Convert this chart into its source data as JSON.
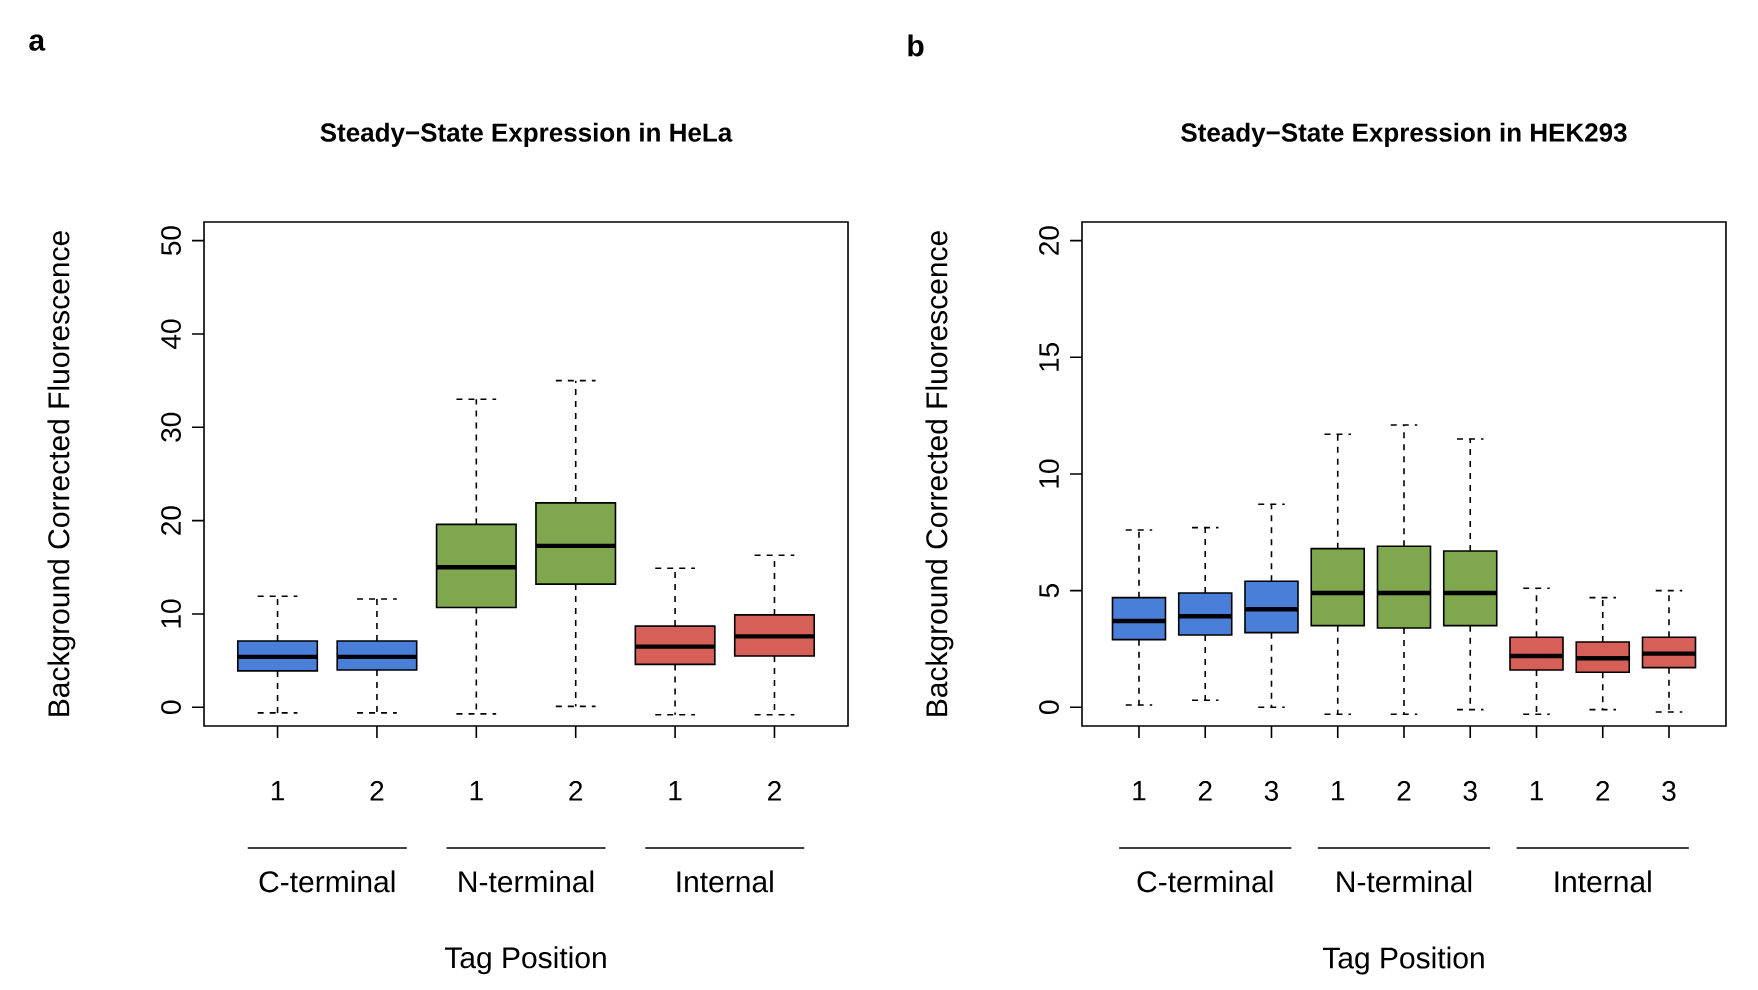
{
  "chart_data": [
    {
      "type": "box",
      "title": "Steady−State Expression in HeLa",
      "xlabel": "Tag Position",
      "ylabel": "Background Corrected Fluorescence",
      "annotations": [
        "a",
        "C-terminal",
        "N-terminal",
        "Internal"
      ],
      "categories": [
        "1",
        "2",
        "1",
        "2",
        "1",
        "2"
      ],
      "ylim": [
        -2,
        52
      ],
      "yticks": [
        0,
        10,
        20,
        30,
        40,
        50
      ],
      "series": [
        {
          "color": "#4a7fd9",
          "boxes": [
            {
              "low": -0.6,
              "q1": 3.9,
              "median": 5.4,
              "q3": 7.1,
              "high": 11.9
            },
            {
              "low": -0.6,
              "q1": 4.0,
              "median": 5.4,
              "q3": 7.1,
              "high": 11.6
            },
            null,
            null,
            null,
            null
          ]
        },
        {
          "color": "#7fa84e",
          "boxes": [
            null,
            null,
            {
              "low": -0.7,
              "q1": 10.7,
              "median": 15.0,
              "q3": 19.6,
              "high": 33.0
            },
            {
              "low": 0.1,
              "q1": 13.2,
              "median": 17.3,
              "q3": 21.9,
              "high": 35.0
            },
            null,
            null
          ]
        },
        {
          "color": "#d65f58",
          "boxes": [
            null,
            null,
            null,
            null,
            {
              "low": -0.8,
              "q1": 4.6,
              "median": 6.5,
              "q3": 8.7,
              "high": 14.9
            },
            {
              "low": -0.8,
              "q1": 5.5,
              "median": 7.6,
              "q3": 9.9,
              "high": 16.3
            }
          ]
        }
      ]
    },
    {
      "type": "box",
      "title": "Steady−State Expression in HEK293",
      "xlabel": "Tag Position",
      "ylabel": "Background Corrected Fluorescence",
      "annotations": [
        "b",
        "C-terminal",
        "N-terminal",
        "Internal"
      ],
      "categories": [
        "1",
        "2",
        "3",
        "1",
        "2",
        "3",
        "1",
        "2",
        "3"
      ],
      "ylim": [
        -0.8,
        20.8
      ],
      "yticks": [
        0,
        5,
        10,
        15,
        20
      ],
      "series": [
        {
          "color": "#4a7fd9",
          "boxes": [
            {
              "low": 0.1,
              "q1": 2.9,
              "median": 3.7,
              "q3": 4.7,
              "high": 7.6
            },
            {
              "low": 0.3,
              "q1": 3.1,
              "median": 3.9,
              "q3": 4.9,
              "high": 7.7
            },
            {
              "low": 0.0,
              "q1": 3.2,
              "median": 4.2,
              "q3": 5.4,
              "high": 8.7
            },
            null,
            null,
            null,
            null,
            null,
            null
          ]
        },
        {
          "color": "#7fa84e",
          "boxes": [
            null,
            null,
            null,
            {
              "low": -0.3,
              "q1": 3.5,
              "median": 4.9,
              "q3": 6.8,
              "high": 11.7
            },
            {
              "low": -0.3,
              "q1": 3.4,
              "median": 4.9,
              "q3": 6.9,
              "high": 12.1
            },
            {
              "low": -0.1,
              "q1": 3.5,
              "median": 4.9,
              "q3": 6.7,
              "high": 11.5
            },
            null,
            null,
            null
          ]
        },
        {
          "color": "#d65f58",
          "boxes": [
            null,
            null,
            null,
            null,
            null,
            null,
            {
              "low": -0.3,
              "q1": 1.6,
              "median": 2.2,
              "q3": 3.0,
              "high": 5.1
            },
            {
              "low": -0.1,
              "q1": 1.5,
              "median": 2.1,
              "q3": 2.8,
              "high": 4.7
            },
            {
              "low": -0.2,
              "q1": 1.7,
              "median": 2.3,
              "q3": 3.0,
              "high": 5.0
            }
          ]
        }
      ]
    }
  ]
}
